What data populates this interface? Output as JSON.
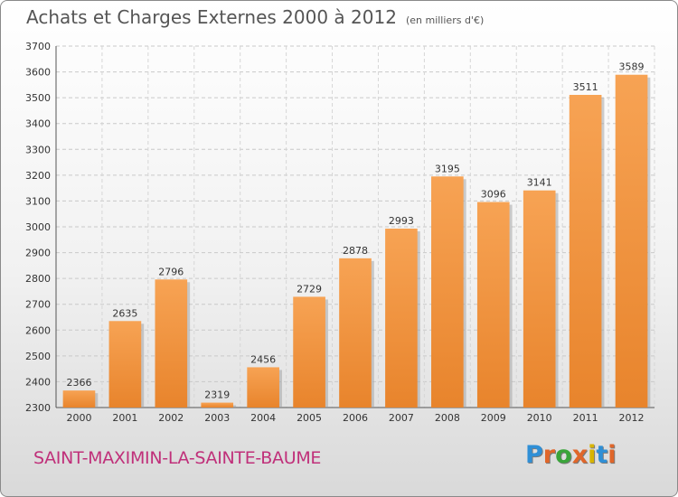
{
  "chart_data": {
    "type": "bar",
    "title": "Achats et Charges Externes 2000 à 2012",
    "subtitle": "(en milliers d'€)",
    "categories": [
      "2000",
      "2001",
      "2002",
      "2003",
      "2004",
      "2005",
      "2006",
      "2007",
      "2008",
      "2009",
      "2010",
      "2011",
      "2012"
    ],
    "values": [
      2366,
      2635,
      2796,
      2319,
      2456,
      2729,
      2878,
      2993,
      3195,
      3096,
      3141,
      3511,
      3589
    ],
    "ylim": [
      2300,
      3700
    ],
    "yticks": [
      2300,
      2400,
      2500,
      2600,
      2700,
      2800,
      2900,
      3000,
      3100,
      3200,
      3300,
      3400,
      3500,
      3600,
      3700
    ],
    "xlabel": "",
    "ylabel": "",
    "grid": true,
    "bar_color": "#e8842c",
    "bar_color_light": "#f7a354"
  },
  "footer": {
    "commune": "SAINT-MAXIMIN-LA-SAINTE-BAUME",
    "logo": "Proxiti",
    "logo_colors": [
      "#2f8fd6",
      "#e0662a",
      "#3aa43a",
      "#e0662a",
      "#d8b400",
      "#2f8fd6",
      "#e0662a"
    ]
  }
}
